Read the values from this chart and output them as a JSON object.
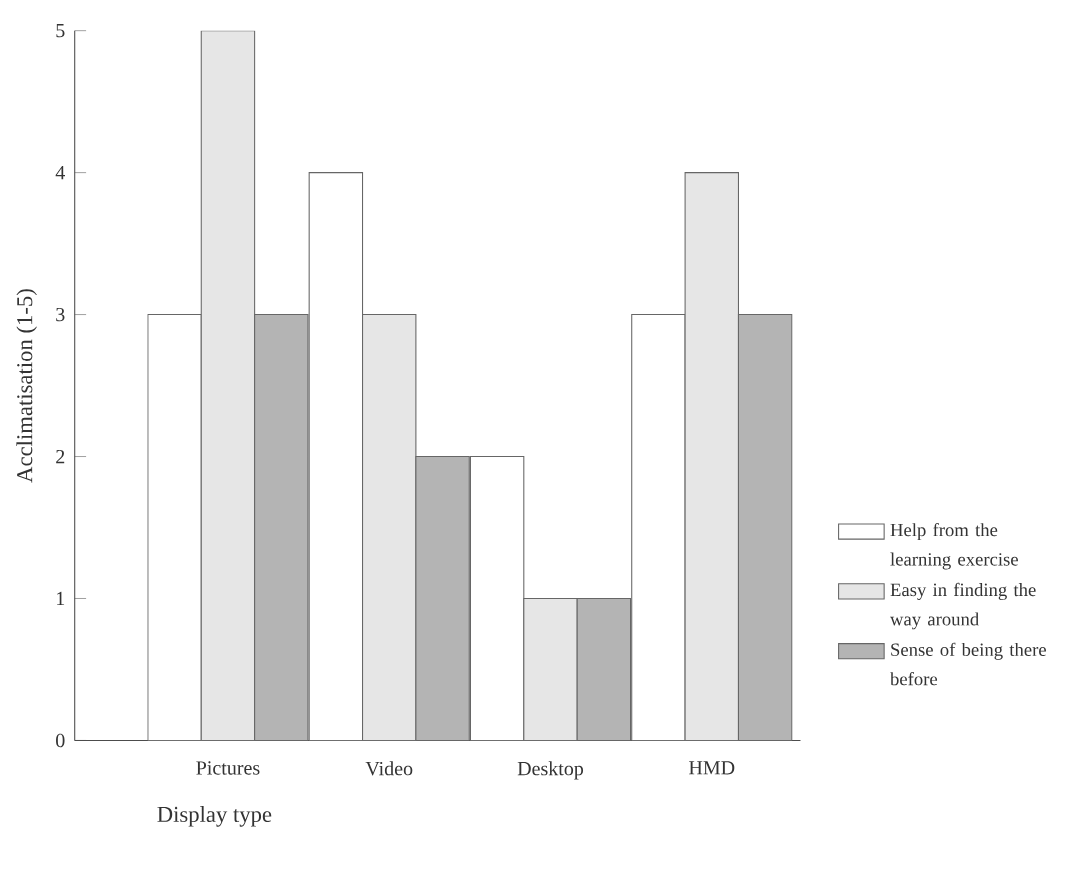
{
  "chart_data": {
    "type": "bar",
    "xlabel": "Display type",
    "ylabel": "Acclimatisation (1-5)",
    "categories": [
      "Pictures",
      "Video",
      "Desktop",
      "HMD"
    ],
    "series": [
      {
        "name": "Help from the learning exercise",
        "color": "#ffffff",
        "values": [
          3,
          4,
          2,
          3
        ]
      },
      {
        "name": "Easy in finding the way around",
        "color": "#e6e6e6",
        "values": [
          5,
          3,
          1,
          4
        ]
      },
      {
        "name": "Sense of being there before",
        "color": "#b4b4b4",
        "values": [
          3,
          2,
          1,
          3
        ]
      }
    ],
    "ylim": [
      0,
      5
    ],
    "yticks": [
      0,
      1,
      2,
      3,
      4,
      5
    ],
    "legend": "right",
    "grid": false
  }
}
